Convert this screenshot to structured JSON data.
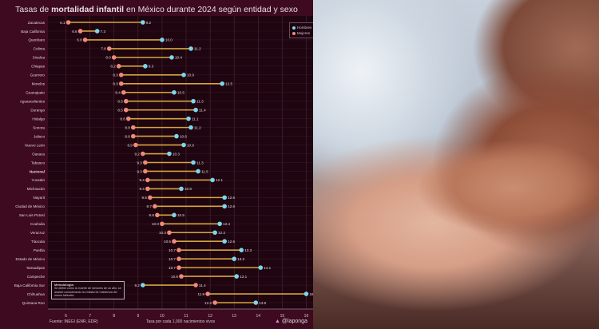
{
  "chart_data": {
    "type": "dumbbell",
    "title_prefix": "Tasas de ",
    "title_bold": "mortalidad infantil",
    "title_suffix": " en México durante 2024 según entidad y sexo",
    "xlabel": "Tasa por cada 1,000 nacimientos vivos",
    "xlim": [
      5.25,
      16.35
    ],
    "xticks": [
      6,
      7,
      8,
      9,
      10,
      11,
      12,
      13,
      14,
      15,
      16
    ],
    "grid": true,
    "legend_position": "top-right",
    "series": [
      {
        "name": "Hombres",
        "color": "#7fd6ea"
      },
      {
        "name": "Mujeres",
        "color": "#f08a7a"
      }
    ],
    "connector_color": "#d6a53c",
    "categories": [
      "Zacatecas",
      "Baja California",
      "Querétaro",
      "Colima",
      "Sinaloa",
      "Chiapas",
      "Guerrero",
      "Morelos",
      "Guanajuato",
      "Aguascalientes",
      "Durango",
      "Hidalgo",
      "Sonora",
      "Jalisco",
      "Nuevo León",
      "Oaxaca",
      "Tabasco",
      "Nacional",
      "Yucatán",
      "Michoacán",
      "Nayarit",
      "Ciudad de México",
      "San Luis Potosí",
      "Coahuila",
      "Veracruz",
      "Tlaxcala",
      "Puebla",
      "Estado de México",
      "Tamaulipas",
      "Campeche",
      "Baja California Sur",
      "Chihuahua",
      "Quintana Roo"
    ],
    "hombres": [
      9.2,
      7.3,
      10.0,
      11.2,
      10.4,
      9.3,
      10.9,
      12.5,
      10.5,
      11.3,
      11.4,
      11.1,
      11.2,
      10.6,
      10.9,
      10.3,
      11.3,
      11.5,
      12.1,
      10.8,
      12.6,
      12.6,
      10.5,
      12.4,
      12.2,
      12.6,
      13.3,
      13.0,
      14.1,
      13.1,
      9.2,
      16.0,
      13.9
    ],
    "mujeres": [
      6.1,
      6.6,
      6.8,
      7.8,
      8.0,
      8.2,
      8.3,
      8.3,
      8.4,
      8.5,
      8.5,
      8.6,
      8.8,
      8.8,
      8.9,
      9.2,
      9.3,
      9.3,
      9.4,
      9.4,
      9.5,
      9.7,
      9.8,
      10.0,
      10.3,
      10.5,
      10.7,
      10.7,
      10.7,
      10.8,
      11.4,
      11.9,
      12.2
    ],
    "bold_category": "Nacional"
  },
  "methodology": {
    "heading": "Metodología:",
    "text": "Se define como la muerte de menores de un año, se analizó considerando la entidad de residencia del menor fallecido."
  },
  "footer": {
    "source": "Fuente: INEGI (ENR, EDR)",
    "credit": "@laponga"
  },
  "colors": {
    "background": "#3d0a1f",
    "plot_background": "#1f0510"
  }
}
